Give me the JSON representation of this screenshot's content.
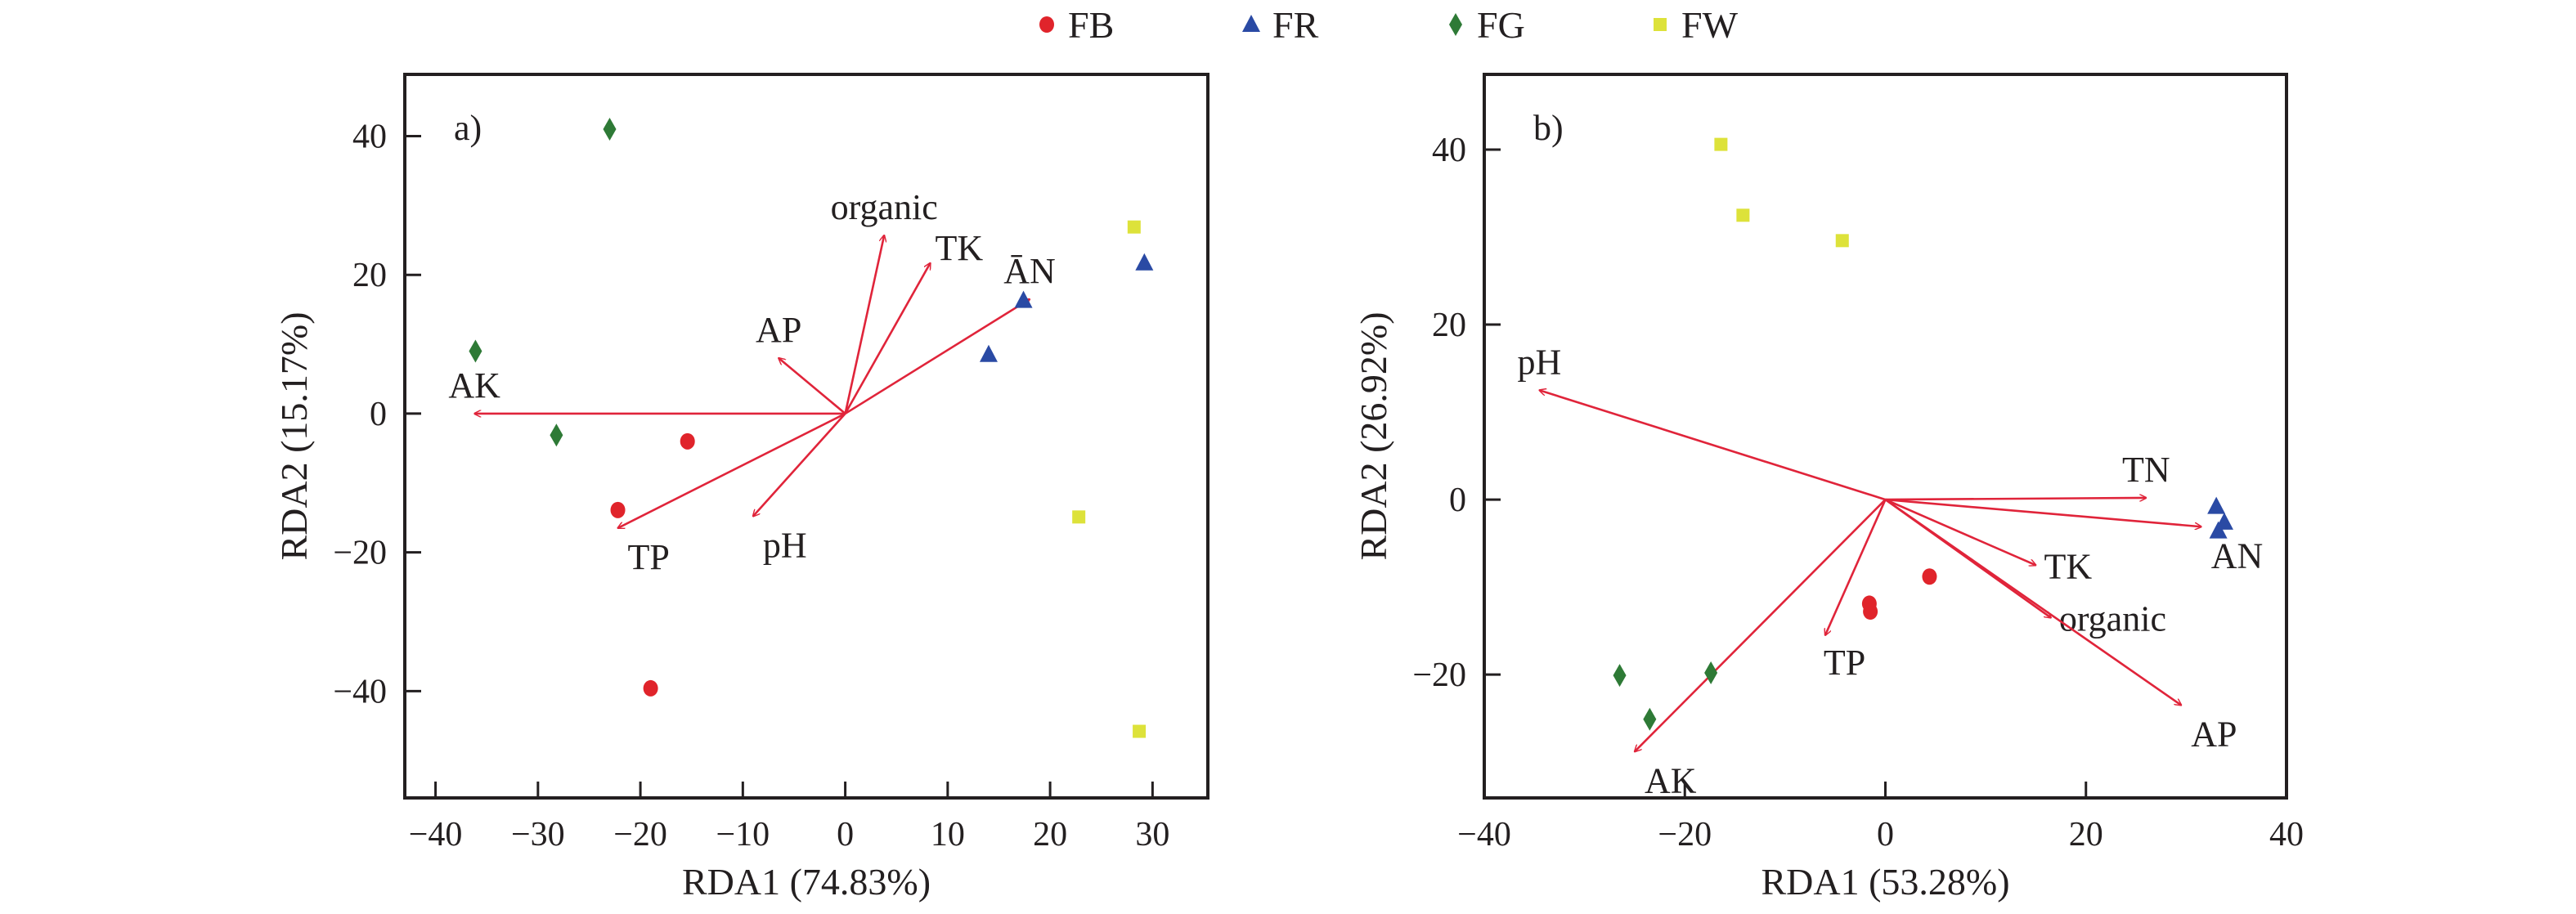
{
  "legend": {
    "placement": "top-center",
    "items": [
      {
        "name": "FB",
        "marker": "circle",
        "color": "#e0242b"
      },
      {
        "name": "FR",
        "marker": "triangle",
        "color": "#2a4aa4"
      },
      {
        "name": "FG",
        "marker": "diamond",
        "color": "#2e7a36"
      },
      {
        "name": "FW",
        "marker": "square",
        "color": "#dde23a"
      }
    ]
  },
  "arrow_color": "#e0243a",
  "chart_data": [
    {
      "type": "scatter",
      "subtype": "rda-biplot",
      "panel_label": "a)",
      "title": "",
      "xlabel": "RDA1 (74.83%)",
      "ylabel": "RDA2 (15.17%)",
      "xlim": [
        -43,
        35.4
      ],
      "ylim": [
        -55.4,
        48.9
      ],
      "xticks": [
        -40,
        -30,
        -20,
        -10,
        0,
        10,
        20,
        30
      ],
      "yticks": [
        -40,
        -20,
        0,
        20,
        40
      ],
      "xtick_labels": [
        "−40",
        "−30",
        "−20",
        "−10",
        "0",
        "10",
        "20",
        "30"
      ],
      "ytick_labels": [
        "−40",
        "−20",
        "0",
        "20",
        "40"
      ],
      "grid": false,
      "series": [
        {
          "name": "FB",
          "points": [
            [
              -15.4,
              -4.0
            ],
            [
              -22.2,
              -13.9
            ],
            [
              -19.0,
              -39.6
            ]
          ]
        },
        {
          "name": "FR",
          "points": [
            [
              14.0,
              8.5
            ],
            [
              17.4,
              16.3
            ],
            [
              29.2,
              21.7
            ]
          ]
        },
        {
          "name": "FG",
          "points": [
            [
              -23.0,
              41.0
            ],
            [
              -36.1,
              9.0
            ],
            [
              -28.2,
              -3.1
            ]
          ]
        },
        {
          "name": "FW",
          "points": [
            [
              28.2,
              26.9
            ],
            [
              22.8,
              -14.9
            ],
            [
              28.7,
              -45.8
            ]
          ]
        }
      ],
      "arrows": [
        {
          "label": "AK",
          "x": -36.2,
          "y": 0.0,
          "label_pos": "above"
        },
        {
          "label": "TP",
          "x": -22.2,
          "y": -16.5,
          "label_pos": "below-right"
        },
        {
          "label": "pH",
          "x": -9.0,
          "y": -14.8,
          "label_pos": "below-right"
        },
        {
          "label": "AP",
          "x": -6.5,
          "y": 8.0,
          "label_pos": "above"
        },
        {
          "label": "organic",
          "x": 3.8,
          "y": 25.7,
          "label_pos": "above"
        },
        {
          "label": "TK",
          "x": 8.3,
          "y": 21.7,
          "label_pos": "above-right"
        },
        {
          "label": "ĀN",
          "x": 18.0,
          "y": 16.5,
          "label_pos": "above"
        }
      ]
    },
    {
      "type": "scatter",
      "subtype": "rda-biplot",
      "panel_label": "b)",
      "title": "",
      "xlabel": "RDA1 (53.28%)",
      "ylabel": "RDA2 (26.92%)",
      "xlim": [
        -40,
        40
      ],
      "ylim": [
        -34.1,
        48.6
      ],
      "xticks": [
        -40,
        -20,
        0,
        20,
        40
      ],
      "yticks": [
        -20,
        0,
        20,
        40
      ],
      "xtick_labels": [
        "−40",
        "−20",
        "0",
        "20",
        "40"
      ],
      "ytick_labels": [
        "−20",
        "0",
        "20",
        "40"
      ],
      "grid": false,
      "series": [
        {
          "name": "FB",
          "points": [
            [
              -1.6,
              -11.9
            ],
            [
              -1.5,
              -12.8
            ],
            [
              4.4,
              -8.8
            ]
          ]
        },
        {
          "name": "FR",
          "points": [
            [
              33.0,
              -0.8
            ],
            [
              33.8,
              -2.6
            ],
            [
              33.2,
              -3.6
            ]
          ]
        },
        {
          "name": "FG",
          "points": [
            [
              -26.5,
              -20.1
            ],
            [
              -23.5,
              -25.1
            ],
            [
              -17.4,
              -19.8
            ]
          ]
        },
        {
          "name": "FW",
          "points": [
            [
              -16.4,
              40.6
            ],
            [
              -14.2,
              32.5
            ],
            [
              -4.3,
              29.6
            ]
          ]
        }
      ],
      "arrows": [
        {
          "label": "pH",
          "x": -34.5,
          "y": 12.5,
          "label_pos": "above"
        },
        {
          "label": "TN",
          "x": 26.0,
          "y": 0.2,
          "label_pos": "above"
        },
        {
          "label": "AN",
          "x": 31.5,
          "y": -3.1,
          "label_pos": "below-right"
        },
        {
          "label": "TK",
          "x": 15.0,
          "y": -7.5,
          "label_pos": "right"
        },
        {
          "label": "organic",
          "x": 16.5,
          "y": -13.5,
          "label_pos": "right"
        },
        {
          "label": "AP",
          "x": 29.5,
          "y": -23.5,
          "label_pos": "below-right"
        },
        {
          "label": "TP",
          "x": -6.0,
          "y": -15.5,
          "label_pos": "below"
        },
        {
          "label": "AK",
          "x": -25.0,
          "y": -28.8,
          "label_pos": "below-right"
        }
      ]
    }
  ]
}
